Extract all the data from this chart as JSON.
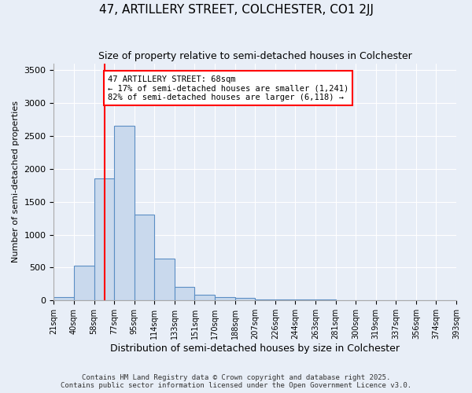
{
  "title": "47, ARTILLERY STREET, COLCHESTER, CO1 2JJ",
  "subtitle": "Size of property relative to semi-detached houses in Colchester",
  "xlabel": "Distribution of semi-detached houses by size in Colchester",
  "ylabel": "Number of semi-detached properties",
  "bin_labels": [
    "21sqm",
    "40sqm",
    "58sqm",
    "77sqm",
    "95sqm",
    "114sqm",
    "133sqm",
    "151sqm",
    "170sqm",
    "188sqm",
    "207sqm",
    "226sqm",
    "244sqm",
    "263sqm",
    "281sqm",
    "300sqm",
    "319sqm",
    "337sqm",
    "356sqm",
    "374sqm",
    "393sqm"
  ],
  "bar_values": [
    55,
    530,
    1850,
    2650,
    1310,
    640,
    205,
    90,
    50,
    35,
    20,
    20,
    20,
    15,
    10,
    10,
    5,
    5,
    5,
    5
  ],
  "bar_color": "#c9d9ed",
  "bar_edge_color": "#5b8ec4",
  "ylim": [
    0,
    3600
  ],
  "yticks": [
    0,
    500,
    1000,
    1500,
    2000,
    2500,
    3000,
    3500
  ],
  "vline_x": 2.53,
  "annotation_text": "47 ARTILLERY STREET: 68sqm\n← 17% of semi-detached houses are smaller (1,241)\n82% of semi-detached houses are larger (6,118) →",
  "annotation_box_color": "white",
  "annotation_box_edge_color": "red",
  "vline_color": "red",
  "background_color": "#e8eef7",
  "footer_text": "Contains HM Land Registry data © Crown copyright and database right 2025.\nContains public sector information licensed under the Open Government Licence v3.0.",
  "grid_color": "white"
}
